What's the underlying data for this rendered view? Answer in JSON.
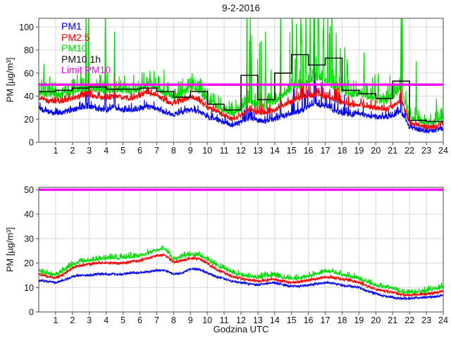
{
  "title": "9-2-2016",
  "colors": {
    "pm1": "#0000ff",
    "pm25": "#ff0000",
    "pm10": "#00dc00",
    "pm10_1h": "#111111",
    "limit": "#ff00ff",
    "grid": "#d8d8d8",
    "axis": "#666666",
    "background": "#ffffff"
  },
  "legend": {
    "items": [
      {
        "label": "PM1",
        "color": "#0000ff"
      },
      {
        "label": "PM2.5",
        "color": "#ff0000"
      },
      {
        "label": "PM10",
        "color": "#00dc00"
      },
      {
        "label": "PM10 1h",
        "color": "#111111"
      },
      {
        "label": "Limit PM10",
        "color": "#ff00ff"
      }
    ]
  },
  "chart_data": [
    {
      "type": "line",
      "title": "9-2-2016",
      "ylabel": "PM [µg/m³]",
      "xlabel": "",
      "xlim": [
        0,
        24
      ],
      "ylim": [
        0,
        107.5
      ],
      "xticks": [
        1,
        2,
        3,
        4,
        5,
        6,
        7,
        8,
        9,
        10,
        11,
        12,
        13,
        14,
        15,
        16,
        17,
        18,
        19,
        20,
        21,
        22,
        23,
        24
      ],
      "yticks": [
        0,
        20,
        40,
        60,
        80,
        100
      ],
      "grid": true,
      "legend_position": "top-left",
      "anchor_step_h": 0.5,
      "series": [
        {
          "name": "PM1",
          "color": "#0000ff",
          "style": "noisy",
          "noise": 2.2,
          "pos": {
            "p": 0.12,
            "amp": 6
          },
          "anchors": [
            29,
            27,
            25,
            26,
            28,
            30,
            31,
            29,
            28,
            29,
            28,
            28,
            29,
            31,
            29,
            26,
            24,
            26,
            28,
            27,
            22,
            20,
            17,
            15,
            17,
            21,
            19,
            18,
            20,
            23,
            25,
            27,
            30,
            33,
            31,
            28,
            25,
            24,
            25,
            23,
            22,
            21,
            23,
            27,
            13,
            11,
            10,
            10,
            12
          ]
        },
        {
          "name": "PM2.5",
          "color": "#ff0000",
          "style": "noisy",
          "noise": 2.2,
          "pos": {
            "p": 0.12,
            "amp": 6
          },
          "anchors": [
            38,
            36,
            35,
            36,
            38,
            40,
            41,
            39,
            38,
            40,
            39,
            38,
            40,
            43,
            40,
            36,
            33,
            36,
            39,
            37,
            30,
            27,
            23,
            20,
            23,
            28,
            26,
            25,
            28,
            32,
            35,
            38,
            40,
            42,
            40,
            37,
            34,
            32,
            33,
            31,
            30,
            28,
            31,
            37,
            17,
            15,
            13,
            13,
            16
          ]
        },
        {
          "name": "PM10",
          "color": "#00dc00",
          "style": "noisy",
          "noise": 2.8,
          "pos": {
            "p": 0.25,
            "amp": 12
          },
          "anchors": [
            43,
            41,
            40,
            41,
            44,
            46,
            47,
            45,
            44,
            46,
            45,
            44,
            46,
            50,
            46,
            42,
            39,
            42,
            46,
            44,
            36,
            32,
            28,
            24,
            28,
            35,
            32,
            31,
            35,
            41,
            46,
            50,
            53,
            56,
            53,
            48,
            44,
            41,
            42,
            39,
            37,
            35,
            39,
            47,
            21,
            19,
            17,
            17,
            21
          ]
        },
        {
          "name": "PM10 1h",
          "color": "#111111",
          "style": "step",
          "line_width": 1.6,
          "hourly": [
            44,
            45,
            47,
            48,
            46,
            46,
            47,
            44,
            39,
            44,
            33,
            28,
            58,
            37,
            60,
            76,
            67,
            73,
            45,
            42,
            38,
            53,
            19,
            18
          ]
        },
        {
          "name": "Limit PM10",
          "color": "#ff00ff",
          "style": "hline",
          "y": 50,
          "line_width": 3.4
        }
      ],
      "spikes": [
        {
          "x": 0.3,
          "PM10": 68
        },
        {
          "x": 0.65,
          "PM10": 57
        },
        {
          "x": 2.8,
          "PM10": 118,
          "PM2.5": 60,
          "PM1": 48
        },
        {
          "x": 2.95,
          "PM10": 118,
          "PM2.5": 88,
          "PM1": 101
        },
        {
          "x": 3.95,
          "PM10": 118,
          "PM2.5": 82,
          "PM1": 99
        },
        {
          "x": 4.5,
          "PM10": 96,
          "PM2.5": 60,
          "PM1": 89
        },
        {
          "x": 6.6,
          "PM10": 62
        },
        {
          "x": 9.2,
          "PM10": 56
        },
        {
          "x": 12.35,
          "PM10": 118,
          "PM2.5": 90,
          "PM1": 103
        },
        {
          "x": 12.55,
          "PM10": 118
        },
        {
          "x": 13.2,
          "PM10": 88
        },
        {
          "x": 13.45,
          "PM10": 96
        },
        {
          "x": 14.35,
          "PM10": 118,
          "PM2.5": 92,
          "PM1": 101
        },
        {
          "x": 15.05,
          "PM10": 118
        },
        {
          "x": 15.3,
          "PM10": 100
        },
        {
          "x": 15.55,
          "PM10": 118
        },
        {
          "x": 15.85,
          "PM10": 118
        },
        {
          "x": 16.1,
          "PM10": 118
        },
        {
          "x": 16.35,
          "PM10": 118,
          "PM1": 99
        },
        {
          "x": 16.6,
          "PM10": 118
        },
        {
          "x": 16.9,
          "PM10": 118
        },
        {
          "x": 17.15,
          "PM10": 118
        },
        {
          "x": 17.4,
          "PM10": 118
        },
        {
          "x": 17.65,
          "PM10": 95
        },
        {
          "x": 17.9,
          "PM10": 82
        },
        {
          "x": 18.3,
          "PM10": 72
        },
        {
          "x": 19.3,
          "PM10": 78
        },
        {
          "x": 20.15,
          "PM10": 60
        },
        {
          "x": 21.5,
          "PM10": 118,
          "PM2.5": 73,
          "PM1": 66
        },
        {
          "x": 21.56,
          "PM10": 118
        },
        {
          "x": 22.4,
          "PM10": 70
        },
        {
          "x": 23.6,
          "PM10": 38
        }
      ],
      "bursts": [
        {
          "x0": 0.0,
          "x1": 10.0,
          "p": 0.05,
          "PM10": 14,
          "PM2.5": 4,
          "PM1": 3
        },
        {
          "x0": 12.1,
          "x1": 13.9,
          "p": 0.1,
          "PM10": 55,
          "PM2.5": 18,
          "PM1": 15
        },
        {
          "x0": 14.9,
          "x1": 18.4,
          "p": 0.14,
          "PM10": 60,
          "PM2.5": 22,
          "PM1": 20
        },
        {
          "x0": 18.4,
          "x1": 21.2,
          "p": 0.06,
          "PM10": 22,
          "PM2.5": 6,
          "PM1": 5
        }
      ]
    },
    {
      "type": "line",
      "title": "",
      "ylabel": "PM [µg/m³]",
      "xlabel": "Godzina UTC",
      "xlim": [
        0,
        24
      ],
      "ylim": [
        0,
        51
      ],
      "xticks": [
        1,
        2,
        3,
        4,
        5,
        6,
        7,
        8,
        9,
        10,
        11,
        12,
        13,
        14,
        15,
        16,
        17,
        18,
        19,
        20,
        21,
        22,
        23,
        24
      ],
      "yticks": [
        0,
        10,
        20,
        30,
        40,
        50
      ],
      "grid": true,
      "anchor_step_h": 0.5,
      "series": [
        {
          "name": "PM1",
          "color": "#0000ff",
          "style": "noisy",
          "noise": 0.45,
          "anchors": [
            13,
            12.5,
            12,
            13,
            14.5,
            15,
            15,
            15.5,
            15.5,
            15.5,
            15.5,
            16,
            16,
            16.5,
            17,
            17,
            15.5,
            16,
            17.5,
            17.5,
            16,
            14.5,
            13.5,
            12.5,
            12,
            11.5,
            11,
            11.5,
            12,
            11,
            10.5,
            10.5,
            11,
            11.5,
            12,
            11.8,
            10.8,
            10.5,
            10,
            8.5,
            7.5,
            6.5,
            6,
            5.5,
            5.5,
            5.8,
            6,
            6.2,
            7
          ]
        },
        {
          "name": "PM2.5",
          "color": "#ff0000",
          "style": "noisy",
          "noise": 0.55,
          "pos": {
            "p": 0.1,
            "amp": 0.6
          },
          "anchors": [
            15.5,
            14.5,
            14,
            15.5,
            18,
            19,
            19.5,
            20,
            20,
            20,
            20,
            20.5,
            21,
            22,
            23,
            23.2,
            20.5,
            21,
            22,
            21.8,
            20,
            17.5,
            16,
            14.5,
            13.5,
            13,
            12.5,
            13,
            13.5,
            12.5,
            12,
            12.2,
            13,
            13.5,
            14.2,
            14,
            13.4,
            13,
            12,
            10.5,
            9.4,
            8.5,
            8,
            7,
            6.8,
            7.2,
            7.5,
            7.8,
            8.5
          ]
        },
        {
          "name": "PM10",
          "color": "#00dc00",
          "style": "noisy",
          "noise": 0.6,
          "pos": {
            "p": 0.35,
            "amp": 1.6
          },
          "anchors": [
            16.5,
            15.5,
            15,
            17,
            19.5,
            20.5,
            21,
            21.5,
            22,
            22,
            22,
            22.5,
            23,
            24,
            25.3,
            25.5,
            21.5,
            22.5,
            23.5,
            23.2,
            21,
            19,
            17.5,
            16,
            15,
            14.5,
            14,
            14.5,
            15,
            14,
            13.5,
            13.7,
            14.7,
            15.5,
            16.6,
            16.2,
            15.1,
            14.5,
            13.5,
            12,
            10.9,
            10,
            9.5,
            8,
            7.7,
            8.2,
            8.7,
            9.2,
            10.3
          ]
        },
        {
          "name": "Limit PM10",
          "color": "#ff00ff",
          "style": "hline",
          "y": 50,
          "line_width": 3.4
        }
      ],
      "spikes": [],
      "bursts": []
    }
  ]
}
